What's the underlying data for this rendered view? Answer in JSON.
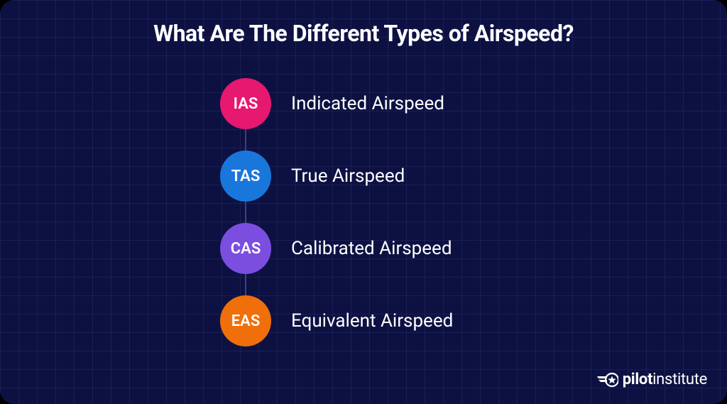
{
  "card": {
    "background_color": "#0d1142",
    "grid_color": "rgba(80,90,160,0.18)",
    "grid_spacing": 26,
    "border_radius": 20
  },
  "title": {
    "text": "What Are The Different Types of Airspeed?",
    "color": "#ffffff",
    "fontsize": 32
  },
  "items": [
    {
      "abbr": "IAS",
      "label": "Indicated Airspeed",
      "circle_color": "#e6186f"
    },
    {
      "abbr": "TAS",
      "label": "True Airspeed",
      "circle_color": "#1977dc"
    },
    {
      "abbr": "CAS",
      "label": "Calibrated Airspeed",
      "circle_color": "#7b4ee0"
    },
    {
      "abbr": "EAS",
      "label": "Equivalent Airspeed",
      "circle_color": "#f06f0a"
    }
  ],
  "item_style": {
    "abbr_color": "#ffffff",
    "abbr_fontsize": 22,
    "label_color": "#ffffff",
    "label_fontsize": 26,
    "circle_diameter": 72,
    "row_gap": 30,
    "connector_color": "#3a4280"
  },
  "logo": {
    "text_bold": "pilot",
    "text_regular": "institute",
    "color": "#ffffff",
    "fontsize": 22,
    "icon_color": "#ffffff"
  }
}
